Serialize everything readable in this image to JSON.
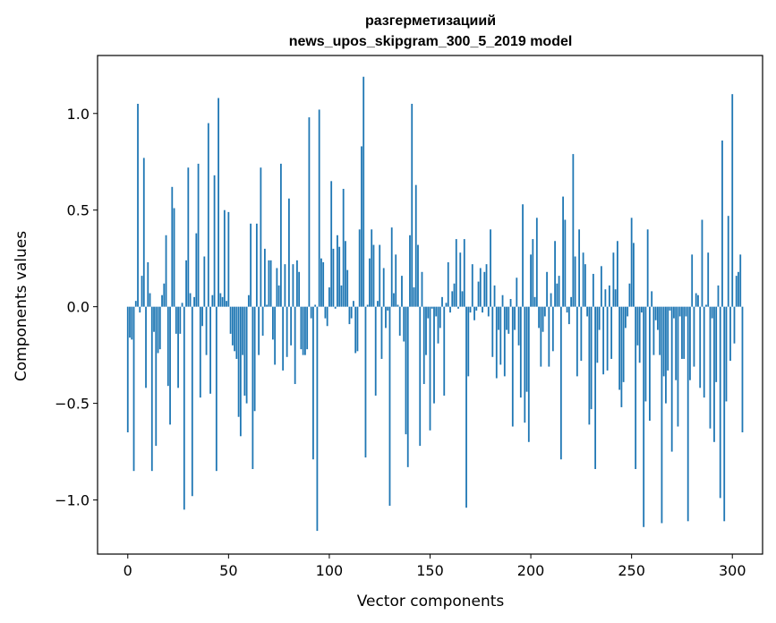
{
  "chart_data": {
    "type": "bar",
    "title": "разгерметизациий",
    "subtitle": "news_upos_skipgram_300_5_2019 model",
    "xlabel": "Vector components",
    "ylabel": "Components values",
    "xlim": [
      -15,
      315
    ],
    "ylim": [
      -1.28,
      1.3
    ],
    "xticks": [
      0,
      50,
      100,
      150,
      200,
      250,
      300
    ],
    "xtick_labels": [
      "0",
      "50",
      "100",
      "150",
      "200",
      "250",
      "300"
    ],
    "yticks": [
      -1.0,
      -0.5,
      0.0,
      0.5,
      1.0
    ],
    "ytick_labels": [
      "−1.0",
      "−0.5",
      "0.0",
      "0.5",
      "1.0"
    ],
    "bar_color": "#1f77b4",
    "values": [
      -0.65,
      -0.16,
      -0.17,
      -0.85,
      0.03,
      1.05,
      -0.03,
      0.16,
      0.77,
      -0.42,
      0.23,
      0.07,
      -0.85,
      -0.13,
      -0.72,
      -0.24,
      -0.22,
      0.06,
      0.12,
      0.37,
      -0.41,
      -0.61,
      0.62,
      0.51,
      -0.14,
      -0.42,
      -0.14,
      0.02,
      -1.05,
      0.24,
      0.72,
      0.07,
      -0.98,
      0.05,
      0.38,
      0.74,
      -0.47,
      -0.1,
      0.26,
      -0.25,
      0.95,
      -0.45,
      0.06,
      0.68,
      -0.85,
      1.08,
      0.07,
      0.05,
      0.5,
      0.03,
      0.49,
      -0.14,
      -0.2,
      -0.23,
      -0.27,
      -0.57,
      -0.67,
      -0.25,
      -0.46,
      -0.5,
      0.06,
      0.43,
      -0.84,
      -0.54,
      0.43,
      -0.25,
      0.72,
      -0.15,
      0.3,
      0.01,
      0.24,
      0.24,
      -0.17,
      -0.3,
      0.2,
      0.11,
      0.74,
      -0.33,
      0.22,
      -0.26,
      0.56,
      -0.2,
      0.22,
      -0.4,
      0.24,
      0.18,
      -0.22,
      -0.25,
      -0.25,
      -0.22,
      0.98,
      -0.06,
      -0.79,
      0.01,
      -1.16,
      1.02,
      0.25,
      0.23,
      -0.06,
      -0.1,
      0.1,
      0.65,
      0.3,
      -0.01,
      0.37,
      0.31,
      0.11,
      0.61,
      0.34,
      0.19,
      -0.09,
      -0.06,
      0.03,
      -0.24,
      -0.23,
      0.4,
      0.83,
      1.19,
      -0.78,
      0.01,
      0.25,
      0.4,
      0.32,
      -0.46,
      0.03,
      0.32,
      -0.27,
      0.2,
      -0.11,
      -0.02,
      -1.03,
      0.41,
      0.07,
      0.27,
      0.01,
      -0.15,
      0.16,
      -0.18,
      -0.66,
      -0.83,
      0.37,
      1.05,
      0.1,
      0.63,
      0.32,
      -0.72,
      0.18,
      -0.4,
      -0.25,
      -0.06,
      -0.64,
      -0.01,
      -0.5,
      -0.05,
      -0.19,
      -0.11,
      0.05,
      -0.46,
      0.02,
      0.23,
      -0.03,
      0.08,
      0.12,
      0.35,
      -0.01,
      0.28,
      0.08,
      0.35,
      -1.04,
      -0.36,
      -0.03,
      0.22,
      -0.07,
      -0.02,
      0.13,
      0.2,
      -0.03,
      0.18,
      0.22,
      -0.05,
      0.4,
      -0.26,
      0.11,
      -0.37,
      -0.12,
      -0.3,
      0.06,
      -0.36,
      -0.12,
      -0.14,
      0.04,
      -0.62,
      -0.12,
      0.15,
      -0.2,
      -0.47,
      0.53,
      -0.6,
      -0.44,
      -0.7,
      0.27,
      0.35,
      0.05,
      0.46,
      -0.11,
      -0.31,
      -0.13,
      -0.05,
      0.18,
      -0.31,
      0.07,
      -0.23,
      0.34,
      0.12,
      0.16,
      -0.79,
      0.57,
      0.45,
      -0.03,
      -0.09,
      0.05,
      0.79,
      0.26,
      -0.36,
      0.4,
      -0.28,
      0.28,
      0.22,
      -0.05,
      -0.61,
      -0.53,
      0.17,
      -0.84,
      -0.29,
      -0.12,
      0.21,
      -0.35,
      0.09,
      -0.33,
      0.11,
      -0.27,
      0.28,
      0.09,
      0.34,
      -0.43,
      -0.52,
      -0.39,
      -0.11,
      -0.05,
      0.12,
      0.46,
      0.33,
      -0.84,
      -0.2,
      -0.29,
      -0.03,
      -1.14,
      -0.49,
      0.4,
      -0.59,
      0.08,
      -0.25,
      -0.07,
      -0.12,
      -0.25,
      -1.12,
      -0.36,
      -0.5,
      -0.33,
      -0.02,
      -0.75,
      -0.06,
      -0.38,
      -0.62,
      -0.05,
      -0.27,
      -0.27,
      -0.05,
      -1.11,
      -0.38,
      0.27,
      -0.31,
      0.07,
      0.06,
      -0.42,
      0.45,
      -0.47,
      0.01,
      0.28,
      -0.63,
      -0.06,
      -0.7,
      -0.39,
      0.11,
      -0.99,
      0.86,
      -1.11,
      -0.49,
      0.47,
      -0.28,
      1.1,
      -0.19,
      0.16,
      0.18,
      0.27,
      -0.65
    ]
  }
}
